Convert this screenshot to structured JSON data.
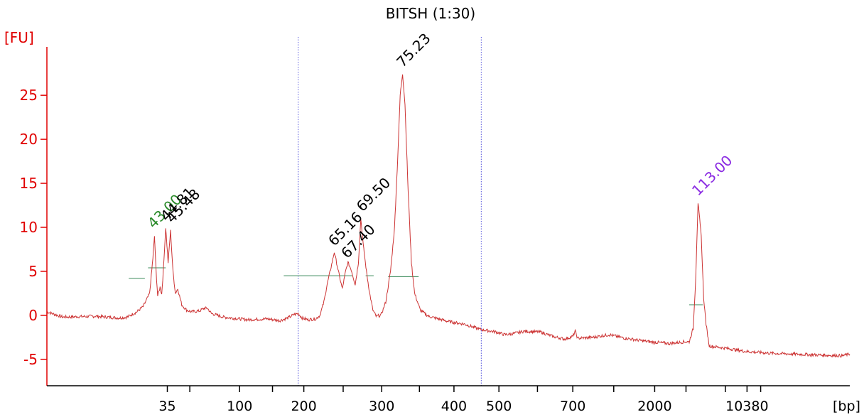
{
  "chart_data": {
    "type": "line",
    "title": "BITSH (1:30)",
    "ylabel": "[FU]",
    "xlabel": "[bp]",
    "ylim": [
      -8,
      30.5
    ],
    "y_ticks": [
      -5,
      0,
      5,
      10,
      15,
      20,
      25
    ],
    "x_ticks": [
      {
        "label": "35",
        "pos": 0.15
      },
      {
        "label": "",
        "pos": 0.178
      },
      {
        "label": "100",
        "pos": 0.24
      },
      {
        "label": "",
        "pos": 0.281
      },
      {
        "label": "200",
        "pos": 0.32
      },
      {
        "label": "",
        "pos": 0.369
      },
      {
        "label": "300",
        "pos": 0.417
      },
      {
        "label": "",
        "pos": 0.464
      },
      {
        "label": "400",
        "pos": 0.507
      },
      {
        "label": "500",
        "pos": 0.563
      },
      {
        "label": "",
        "pos": 0.611
      },
      {
        "label": "700",
        "pos": 0.655
      },
      {
        "label": "",
        "pos": 0.706
      },
      {
        "label": "2000",
        "pos": 0.757
      },
      {
        "label": "",
        "pos": 0.796
      },
      {
        "label": "",
        "pos": 0.845
      },
      {
        "label": "10380",
        "pos": 0.872
      },
      {
        "label": "",
        "pos": 0.889
      }
    ],
    "markers_pos": [
      0.313,
      0.541
    ],
    "series": [
      {
        "color": "#cc3333",
        "points": [
          [
            0,
            0.4
          ],
          [
            0.02,
            -0.2
          ],
          [
            0.06,
            -0.1
          ],
          [
            0.09,
            -0.3
          ],
          [
            0.1,
            -0.2
          ],
          [
            0.112,
            0.4
          ],
          [
            0.12,
            1.0
          ],
          [
            0.128,
            2.5
          ],
          [
            0.132,
            6.5
          ],
          [
            0.134,
            9.0
          ],
          [
            0.136,
            5.0
          ],
          [
            0.138,
            2.2
          ],
          [
            0.141,
            3.2
          ],
          [
            0.143,
            2.4
          ],
          [
            0.145,
            5.0
          ],
          [
            0.148,
            10.0
          ],
          [
            0.151,
            6.0
          ],
          [
            0.154,
            9.6
          ],
          [
            0.157,
            5.0
          ],
          [
            0.16,
            2.5
          ],
          [
            0.163,
            3.0
          ],
          [
            0.168,
            1.2
          ],
          [
            0.174,
            0.6
          ],
          [
            0.18,
            0.4
          ],
          [
            0.19,
            0.5
          ],
          [
            0.196,
            0.8
          ],
          [
            0.2,
            0.8
          ],
          [
            0.205,
            0.2
          ],
          [
            0.22,
            -0.2
          ],
          [
            0.25,
            -0.5
          ],
          [
            0.275,
            -0.4
          ],
          [
            0.29,
            -0.6
          ],
          [
            0.3,
            -0.3
          ],
          [
            0.308,
            0.1
          ],
          [
            0.313,
            0.2
          ],
          [
            0.318,
            -0.3
          ],
          [
            0.325,
            -0.5
          ],
          [
            0.335,
            -0.4
          ],
          [
            0.34,
            0.0
          ],
          [
            0.345,
            1.5
          ],
          [
            0.349,
            3.5
          ],
          [
            0.354,
            5.5
          ],
          [
            0.358,
            7.2
          ],
          [
            0.363,
            5.0
          ],
          [
            0.368,
            3.0
          ],
          [
            0.372,
            5.0
          ],
          [
            0.375,
            6.0
          ],
          [
            0.379,
            5.2
          ],
          [
            0.384,
            3.5
          ],
          [
            0.388,
            6.0
          ],
          [
            0.391,
            11.0
          ],
          [
            0.394,
            8.0
          ],
          [
            0.398,
            5.0
          ],
          [
            0.402,
            2.5
          ],
          [
            0.406,
            0.6
          ],
          [
            0.41,
            -0.1
          ],
          [
            0.416,
            0.0
          ],
          [
            0.422,
            1.5
          ],
          [
            0.428,
            5.0
          ],
          [
            0.433,
            10.0
          ],
          [
            0.437,
            18.0
          ],
          [
            0.44,
            25.0
          ],
          [
            0.443,
            27.5
          ],
          [
            0.446,
            24.0
          ],
          [
            0.45,
            14.0
          ],
          [
            0.454,
            6.0
          ],
          [
            0.458,
            2.5
          ],
          [
            0.465,
            0.6
          ],
          [
            0.475,
            -0.1
          ],
          [
            0.5,
            -0.7
          ],
          [
            0.52,
            -1.0
          ],
          [
            0.54,
            -1.6
          ],
          [
            0.56,
            -1.9
          ],
          [
            0.57,
            -2.2
          ],
          [
            0.58,
            -2.1
          ],
          [
            0.595,
            -1.8
          ],
          [
            0.615,
            -1.9
          ],
          [
            0.63,
            -2.4
          ],
          [
            0.645,
            -2.7
          ],
          [
            0.655,
            -2.4
          ],
          [
            0.658,
            -1.8
          ],
          [
            0.661,
            -2.6
          ],
          [
            0.68,
            -2.5
          ],
          [
            0.7,
            -2.2
          ],
          [
            0.72,
            -2.6
          ],
          [
            0.75,
            -3.0
          ],
          [
            0.775,
            -3.2
          ],
          [
            0.795,
            -3.0
          ],
          [
            0.8,
            -3.0
          ],
          [
            0.805,
            -1.5
          ],
          [
            0.808,
            4.0
          ],
          [
            0.811,
            12.8
          ],
          [
            0.815,
            9.0
          ],
          [
            0.818,
            2.0
          ],
          [
            0.821,
            -1.0
          ],
          [
            0.825,
            -3.5
          ],
          [
            0.835,
            -3.6
          ],
          [
            0.85,
            -3.8
          ],
          [
            0.87,
            -4.1
          ],
          [
            0.9,
            -4.3
          ],
          [
            0.93,
            -4.4
          ],
          [
            0.96,
            -4.5
          ],
          [
            0.99,
            -4.6
          ],
          [
            1.0,
            -4.4
          ]
        ]
      }
    ],
    "peak_labels": [
      {
        "text": "43.00",
        "color": "#2a8a2a",
        "x": 0.133,
        "y": 9.8
      },
      {
        "text": "44.81",
        "color": "#000000",
        "x": 0.149,
        "y": 10.6
      },
      {
        "text": "45.48",
        "color": "#000000",
        "x": 0.156,
        "y": 10.4
      },
      {
        "text": "65.16",
        "color": "#000000",
        "x": 0.358,
        "y": 7.8
      },
      {
        "text": "67.40",
        "color": "#000000",
        "x": 0.374,
        "y": 6.4
      },
      {
        "text": "69.50",
        "color": "#000000",
        "x": 0.393,
        "y": 11.7
      },
      {
        "text": "75.23",
        "color": "#000000",
        "x": 0.443,
        "y": 28.1
      },
      {
        "text": "113.00",
        "color": "#8a2be2",
        "x": 0.811,
        "y": 13.5
      }
    ],
    "peak_ranges": [
      [
        0.102,
        0.122,
        4.2
      ],
      [
        0.126,
        0.148,
        5.4
      ],
      [
        0.295,
        0.38,
        4.5
      ],
      [
        0.397,
        0.407,
        4.5
      ],
      [
        0.425,
        0.463,
        4.4
      ],
      [
        0.8,
        0.817,
        1.2
      ]
    ]
  }
}
